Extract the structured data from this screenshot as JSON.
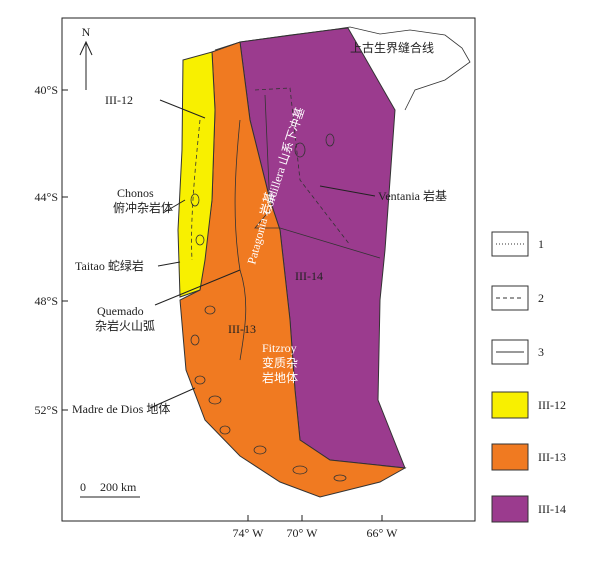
{
  "map": {
    "north": "N",
    "latitudes": [
      "40°S",
      "44°S",
      "48°S",
      "52°S"
    ],
    "longitudes": [
      "74° W",
      "70° W",
      "66° W"
    ],
    "scale": {
      "start": "0",
      "end": "200 km"
    },
    "labels": {
      "suture": "上古生界缝合线",
      "ventania": "Ventania 岩基",
      "cordillera": "Cordillera 山系下冲基",
      "patagonia": "Patagonia 岩基",
      "unit_12": "III-12",
      "unit_13": "III-13",
      "unit_14": "III-14",
      "chonos": "Chonos",
      "chonos_cn": "俯冲杂岩体",
      "taitao": "Taitao 蛇绿岩",
      "quemado": "Quemado",
      "quemado_cn": "杂岩火山弧",
      "fitzroy": "Fitzroy",
      "fitzroy_cn1": "变质杂",
      "fitzroy_cn2": "岩地体",
      "madre": "Madre de Dios 地体"
    }
  },
  "legend": [
    {
      "label": "1"
    },
    {
      "label": "2"
    },
    {
      "label": "3"
    },
    {
      "label": "III-12"
    },
    {
      "label": "III-13"
    },
    {
      "label": "III-14"
    }
  ]
}
